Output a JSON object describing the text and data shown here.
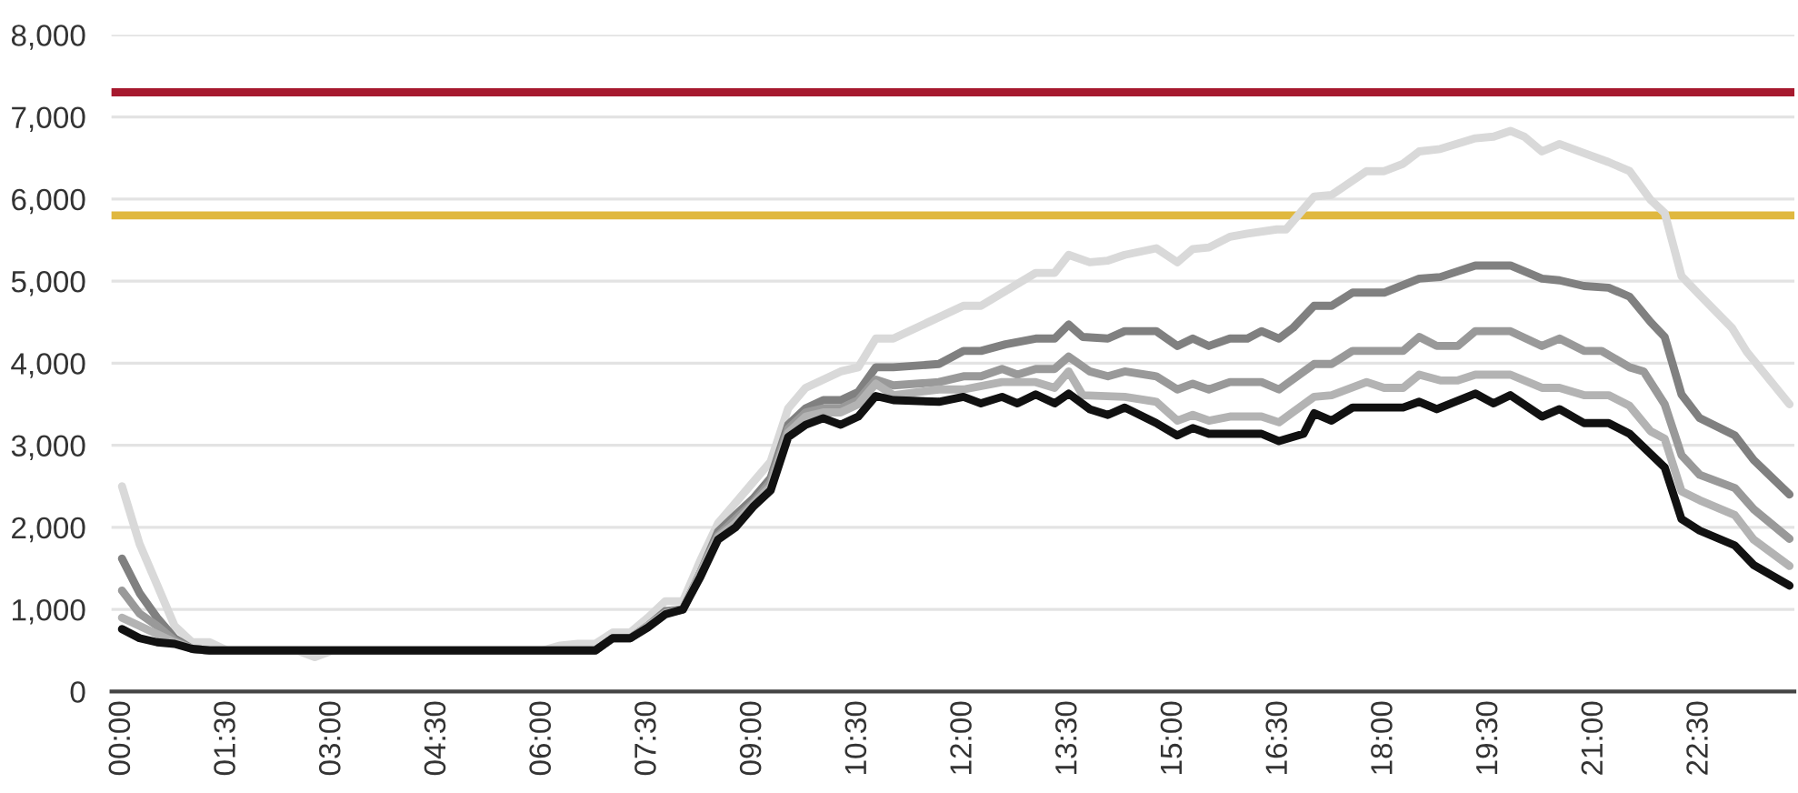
{
  "chart_data": {
    "type": "line",
    "xlim": [
      -0.15,
      23.85
    ],
    "xticks": [
      {
        "value": 0,
        "label": "00:00"
      },
      {
        "value": 1.5,
        "label": "01:30"
      },
      {
        "value": 3,
        "label": "03:00"
      },
      {
        "value": 4.5,
        "label": "04:30"
      },
      {
        "value": 6,
        "label": "06:00"
      },
      {
        "value": 7.5,
        "label": "07:30"
      },
      {
        "value": 9,
        "label": "09:00"
      },
      {
        "value": 10.5,
        "label": "10:30"
      },
      {
        "value": 12,
        "label": "12:00"
      },
      {
        "value": 13.5,
        "label": "13:30"
      },
      {
        "value": 15,
        "label": "15:00"
      },
      {
        "value": 16.5,
        "label": "16:30"
      },
      {
        "value": 18,
        "label": "18:00"
      },
      {
        "value": 19.5,
        "label": "19:30"
      },
      {
        "value": 21,
        "label": "21:00"
      },
      {
        "value": 22.5,
        "label": "22:30"
      }
    ],
    "ylim": [
      0,
      8000
    ],
    "yticks": [
      {
        "value": 0,
        "label": "0"
      },
      {
        "value": 1000,
        "label": "1,000"
      },
      {
        "value": 2000,
        "label": "2,000"
      },
      {
        "value": 3000,
        "label": "3,000"
      },
      {
        "value": 4000,
        "label": "4,000"
      },
      {
        "value": 5000,
        "label": "5,000"
      },
      {
        "value": 6000,
        "label": "6,000"
      },
      {
        "value": 7000,
        "label": "7,000"
      },
      {
        "value": 8000,
        "label": "8,000"
      }
    ],
    "grid": "y",
    "line_style": "solid",
    "marker": "none",
    "ref_lines": [
      {
        "axis": "y",
        "value": 7300,
        "color": "#a6192e"
      },
      {
        "axis": "y",
        "value": 5800,
        "color": "#e0b83f"
      }
    ],
    "series": [
      {
        "color": "#d9d9d9",
        "x": [
          0,
          0.25,
          0.5,
          0.75,
          1,
          1.25,
          1.5,
          2.5,
          2.75,
          3,
          6,
          6.25,
          6.5,
          6.75,
          7,
          7.25,
          7.5,
          7.75,
          8,
          8.25,
          8.5,
          8.75,
          9,
          9.25,
          9.5,
          9.75,
          10,
          10.25,
          10.5,
          10.75,
          11,
          12,
          12.25,
          13.03,
          13.3,
          13.5,
          13.8,
          14.06,
          14.3,
          14.75,
          15.05,
          15.27,
          15.5,
          15.8,
          16.05,
          16.47,
          16.6,
          17,
          17.25,
          17.75,
          18,
          18.27,
          18.5,
          18.8,
          19.3,
          19.56,
          19.8,
          20,
          20.25,
          20.5,
          20.85,
          21.2,
          21.5,
          21.8,
          22,
          22.24,
          22.5,
          22.96,
          23.17,
          23.78
        ],
        "values": [
          2500,
          1800,
          1300,
          800,
          600,
          600,
          500,
          500,
          420,
          500,
          500,
          560,
          580,
          580,
          720,
          720,
          900,
          1100,
          1100,
          1600,
          2050,
          2300,
          2550,
          2800,
          3450,
          3700,
          3800,
          3900,
          3950,
          4300,
          4300,
          4700,
          4700,
          5100,
          5100,
          5320,
          5230,
          5250,
          5320,
          5400,
          5230,
          5390,
          5410,
          5540,
          5580,
          5630,
          5630,
          6030,
          6050,
          6340,
          6340,
          6430,
          6580,
          6610,
          6740,
          6760,
          6830,
          6760,
          6580,
          6670,
          6560,
          6450,
          6340,
          5990,
          5830,
          5060,
          4830,
          4430,
          4140,
          3500
        ]
      },
      {
        "color": "#808080",
        "x": [
          0,
          0.25,
          0.5,
          0.75,
          1,
          1.25,
          1.5,
          2.5,
          2.75,
          3,
          6,
          6.25,
          6.5,
          6.75,
          7,
          7.25,
          7.5,
          7.75,
          8,
          8.25,
          8.5,
          8.75,
          9,
          9.25,
          9.5,
          9.75,
          10,
          10.25,
          10.5,
          10.75,
          11,
          11.65,
          12,
          12.25,
          12.6,
          13.03,
          13.3,
          13.5,
          13.7,
          14.06,
          14.3,
          14.75,
          15.05,
          15.27,
          15.5,
          15.8,
          16.05,
          16.25,
          16.5,
          16.7,
          17,
          17.25,
          17.55,
          18,
          18.5,
          18.8,
          19.3,
          19.8,
          20.25,
          20.5,
          20.85,
          21.2,
          21.5,
          21.8,
          22,
          22.24,
          22.5,
          23,
          23.27,
          23.78
        ],
        "values": [
          1620,
          1200,
          900,
          650,
          520,
          500,
          500,
          500,
          500,
          500,
          500,
          500,
          500,
          500,
          650,
          650,
          800,
          980,
          1000,
          1450,
          1950,
          2150,
          2350,
          2600,
          3250,
          3450,
          3550,
          3550,
          3650,
          3950,
          3950,
          3990,
          4150,
          4150,
          4230,
          4300,
          4300,
          4470,
          4320,
          4300,
          4390,
          4390,
          4210,
          4300,
          4210,
          4300,
          4300,
          4390,
          4300,
          4430,
          4700,
          4700,
          4860,
          4860,
          5030,
          5050,
          5190,
          5190,
          5030,
          5010,
          4940,
          4920,
          4810,
          4500,
          4320,
          3620,
          3330,
          3120,
          2820,
          2400
        ]
      },
      {
        "color": "#999999",
        "x": [
          0,
          0.25,
          0.5,
          0.75,
          1,
          1.25,
          1.5,
          2.5,
          2.75,
          3,
          6,
          6.25,
          6.5,
          6.75,
          7,
          7.25,
          7.5,
          7.75,
          8,
          8.25,
          8.5,
          8.75,
          9,
          9.25,
          9.5,
          9.75,
          10,
          10.25,
          10.5,
          10.75,
          11,
          11.65,
          12,
          12.25,
          12.55,
          12.77,
          13.03,
          13.3,
          13.5,
          13.8,
          14.06,
          14.3,
          14.75,
          15.05,
          15.27,
          15.5,
          15.8,
          16.25,
          16.5,
          17,
          17.25,
          17.55,
          18.27,
          18.5,
          18.75,
          19.05,
          19.3,
          19.8,
          20.25,
          20.5,
          20.85,
          21.1,
          21.5,
          21.7,
          22,
          22.24,
          22.5,
          23,
          23.27,
          23.78
        ],
        "values": [
          1230,
          950,
          800,
          620,
          520,
          500,
          500,
          500,
          500,
          500,
          500,
          500,
          500,
          500,
          650,
          650,
          800,
          960,
          1000,
          1450,
          1900,
          2100,
          2300,
          2550,
          3200,
          3400,
          3450,
          3450,
          3550,
          3800,
          3730,
          3770,
          3840,
          3840,
          3930,
          3860,
          3930,
          3930,
          4080,
          3900,
          3840,
          3900,
          3840,
          3680,
          3750,
          3680,
          3770,
          3770,
          3680,
          3990,
          3990,
          4150,
          4150,
          4320,
          4210,
          4210,
          4390,
          4390,
          4210,
          4300,
          4150,
          4150,
          3950,
          3900,
          3500,
          2880,
          2640,
          2480,
          2220,
          1860
        ]
      },
      {
        "color": "#b3b3b3",
        "x": [
          0,
          0.25,
          0.5,
          0.75,
          1,
          1.25,
          1.5,
          2.5,
          2.75,
          3,
          6,
          6.25,
          6.5,
          6.75,
          7,
          7.25,
          7.5,
          7.75,
          8,
          8.25,
          8.5,
          8.75,
          9,
          9.25,
          9.5,
          9.75,
          10,
          10.25,
          10.5,
          10.75,
          11,
          11.65,
          12,
          12.55,
          13.03,
          13.3,
          13.5,
          13.7,
          14.3,
          14.75,
          15.05,
          15.27,
          15.5,
          15.8,
          16.25,
          16.5,
          17,
          17.25,
          17.75,
          18,
          18.27,
          18.5,
          18.8,
          19.05,
          19.3,
          19.8,
          20.25,
          20.5,
          20.85,
          21.2,
          21.5,
          21.8,
          22,
          22.24,
          22.5,
          23,
          23.27,
          23.78
        ],
        "values": [
          900,
          800,
          700,
          600,
          520,
          500,
          500,
          500,
          500,
          500,
          500,
          500,
          500,
          500,
          650,
          650,
          800,
          950,
          1000,
          1450,
          1880,
          2050,
          2280,
          2500,
          3150,
          3350,
          3400,
          3400,
          3500,
          3750,
          3610,
          3680,
          3680,
          3770,
          3770,
          3700,
          3900,
          3610,
          3590,
          3530,
          3300,
          3370,
          3300,
          3350,
          3350,
          3280,
          3590,
          3610,
          3770,
          3700,
          3700,
          3860,
          3790,
          3790,
          3860,
          3860,
          3700,
          3700,
          3610,
          3610,
          3480,
          3170,
          3080,
          2440,
          2330,
          2150,
          1850,
          1530
        ]
      },
      {
        "color": "#111111",
        "x": [
          0,
          0.25,
          0.5,
          0.75,
          1,
          1.25,
          1.5,
          2.5,
          2.75,
          3,
          6,
          6.25,
          6.5,
          6.75,
          7,
          7.25,
          7.5,
          7.75,
          8,
          8.25,
          8.5,
          8.75,
          9,
          9.25,
          9.5,
          9.75,
          10,
          10.25,
          10.5,
          10.75,
          11,
          11.65,
          12,
          12.25,
          12.55,
          12.77,
          13.03,
          13.3,
          13.5,
          13.8,
          14.06,
          14.3,
          14.75,
          15.05,
          15.27,
          15.5,
          16.25,
          16.5,
          16.85,
          17,
          17.25,
          17.55,
          18.27,
          18.5,
          18.75,
          19.3,
          19.56,
          19.8,
          20.25,
          20.5,
          20.85,
          21.2,
          21.5,
          22,
          22.24,
          22.5,
          23,
          23.27,
          23.78
        ],
        "values": [
          760,
          650,
          600,
          580,
          520,
          500,
          500,
          500,
          500,
          500,
          500,
          500,
          500,
          500,
          650,
          650,
          780,
          940,
          1000,
          1400,
          1850,
          2000,
          2250,
          2450,
          3100,
          3250,
          3330,
          3250,
          3350,
          3600,
          3550,
          3530,
          3590,
          3510,
          3590,
          3510,
          3620,
          3510,
          3630,
          3440,
          3370,
          3460,
          3270,
          3120,
          3210,
          3140,
          3140,
          3050,
          3140,
          3390,
          3300,
          3460,
          3460,
          3530,
          3440,
          3630,
          3510,
          3610,
          3350,
          3440,
          3270,
          3270,
          3140,
          2730,
          2100,
          1960,
          1780,
          1540,
          1290
        ]
      }
    ]
  }
}
